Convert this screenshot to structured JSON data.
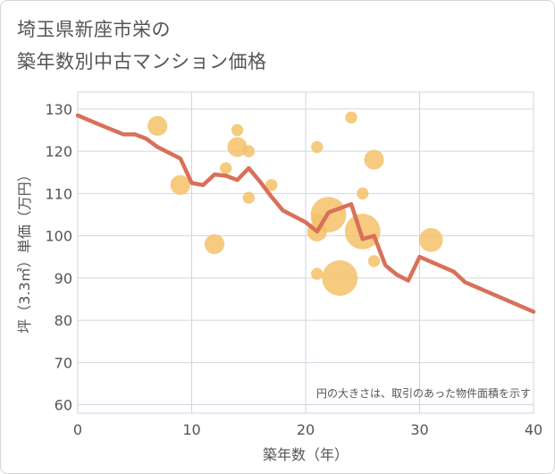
{
  "title_lines": [
    "埼玉県新座市栄の",
    "築年数別中古マンション価格"
  ],
  "chart_data": {
    "type": "scatter",
    "xlabel": "築年数（年）",
    "ylabel": "坪（3.3㎡）単価（万円）",
    "xlim": [
      0,
      40
    ],
    "ylim": [
      58,
      134
    ],
    "xticks": [
      0,
      10,
      20,
      30,
      40
    ],
    "yticks": [
      60,
      70,
      80,
      90,
      100,
      110,
      120,
      130
    ],
    "grid": true,
    "note": "円の大きさは、取引のあった物件面積を示す",
    "colors": {
      "bubble": "#f5c169",
      "line": "#d9705a",
      "grid": "#cfd6e2"
    },
    "bubbles": [
      {
        "x": 7,
        "y": 126,
        "size": 3
      },
      {
        "x": 9,
        "y": 112,
        "size": 3
      },
      {
        "x": 12,
        "y": 98,
        "size": 3
      },
      {
        "x": 13,
        "y": 116,
        "size": 1
      },
      {
        "x": 14,
        "y": 125,
        "size": 1
      },
      {
        "x": 14,
        "y": 121,
        "size": 3
      },
      {
        "x": 15,
        "y": 120,
        "size": 1
      },
      {
        "x": 15,
        "y": 109,
        "size": 1
      },
      {
        "x": 17,
        "y": 112,
        "size": 1
      },
      {
        "x": 21,
        "y": 121,
        "size": 1
      },
      {
        "x": 21,
        "y": 104,
        "size": 1
      },
      {
        "x": 21,
        "y": 101,
        "size": 3
      },
      {
        "x": 21,
        "y": 91,
        "size": 1
      },
      {
        "x": 22,
        "y": 105,
        "size": 7
      },
      {
        "x": 23,
        "y": 90,
        "size": 7
      },
      {
        "x": 24,
        "y": 128,
        "size": 1
      },
      {
        "x": 25,
        "y": 110,
        "size": 1
      },
      {
        "x": 25,
        "y": 101,
        "size": 7
      },
      {
        "x": 26,
        "y": 118,
        "size": 3
      },
      {
        "x": 26,
        "y": 94,
        "size": 1
      },
      {
        "x": 31,
        "y": 99,
        "size": 4
      }
    ],
    "line": {
      "x": [
        0,
        2,
        4,
        5,
        6,
        7,
        9,
        10,
        11,
        12,
        13,
        14,
        15,
        16,
        17,
        18,
        20,
        21,
        22,
        24,
        25,
        26,
        27,
        28,
        29,
        30,
        33,
        34,
        40
      ],
      "y": [
        128.5,
        126.2,
        124,
        124,
        123,
        121,
        118.3,
        112.5,
        112,
        114.5,
        114.2,
        113.2,
        116,
        112.8,
        109.2,
        106,
        103.2,
        101,
        105.5,
        107.5,
        99.2,
        100,
        93,
        90.8,
        89.4,
        95,
        91.5,
        89,
        82
      ]
    }
  }
}
